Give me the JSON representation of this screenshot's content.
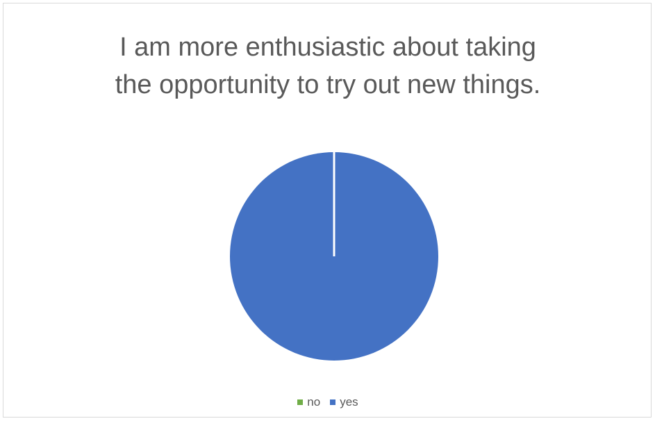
{
  "chart_data": {
    "type": "pie",
    "title_lines": [
      "I am more enthusiastic about taking",
      "the opportunity to try out new things."
    ],
    "categories": [
      "no",
      "yes"
    ],
    "values": [
      0,
      100
    ],
    "colors": [
      "#70ad47",
      "#4472c4"
    ],
    "legend_position": "bottom"
  }
}
